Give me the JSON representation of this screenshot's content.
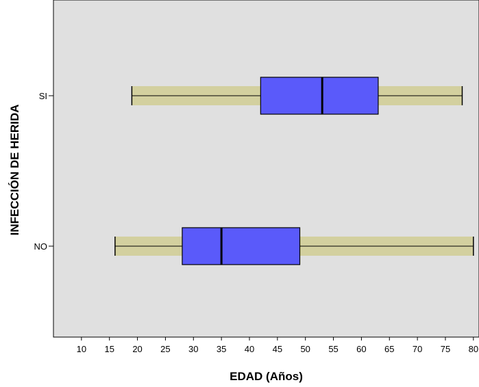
{
  "chart_data": {
    "type": "boxplot",
    "orientation": "horizontal",
    "title": "",
    "xlabel": "EDAD (Años)",
    "ylabel": "INFECCIÓN DE HERIDA",
    "xlim": [
      5,
      81
    ],
    "x_ticks": [
      10,
      15,
      20,
      25,
      30,
      35,
      40,
      45,
      50,
      55,
      60,
      65,
      70,
      75,
      80
    ],
    "categories": [
      "SI",
      "NO"
    ],
    "boxes": [
      {
        "category": "SI",
        "min": 19,
        "q1": 42,
        "median": 53,
        "q3": 63,
        "max": 78
      },
      {
        "category": "NO",
        "min": 16,
        "q1": 28,
        "median": 35,
        "q3": 49,
        "max": 80
      }
    ],
    "grid": false,
    "legend": "none",
    "colors": {
      "plot_background": "#e0e0e0",
      "box_fill": "#5a5afa",
      "whisker_band": "#d3d09f",
      "line": "#000000"
    }
  }
}
